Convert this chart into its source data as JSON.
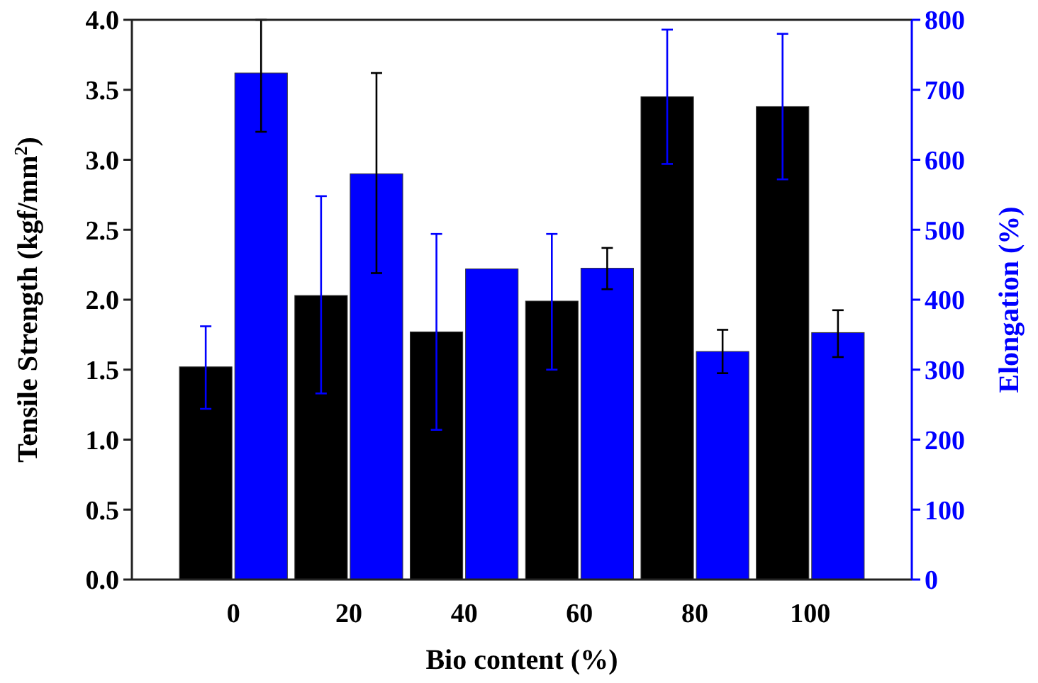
{
  "chart_data": {
    "type": "bar",
    "categories": [
      "0",
      "20",
      "40",
      "60",
      "80",
      "100"
    ],
    "xlabel": "Bio content (%)",
    "ylabel": "Tensile Strength (kgf/mm$^{2}$)",
    "y2label": "Elongation (%)",
    "ylim": [
      0,
      4
    ],
    "yticks": [
      {
        "value": 0,
        "label": "0.0"
      },
      0.5,
      {
        "value": 1,
        "label": "1.0"
      },
      1.5,
      {
        "value": 2,
        "label": "2.0"
      },
      2.5,
      {
        "value": 3,
        "label": "3.0"
      },
      3.5,
      {
        "value": 4,
        "label": "4.0"
      }
    ],
    "y2lim": [
      0,
      800
    ],
    "y2ticks": [
      0,
      100,
      200,
      300,
      400,
      500,
      600,
      700,
      800
    ],
    "grid": false,
    "series": [
      {
        "color": "#000000",
        "values": [
          1.52,
          2.03,
          1.77,
          1.99,
          3.45,
          3.38
        ],
        "errors": [
          [
            1.22,
            1.81
          ],
          [
            1.33,
            2.74
          ],
          [
            1.07,
            2.47
          ],
          [
            1.5,
            2.47
          ],
          [
            2.97,
            3.93
          ],
          [
            2.86,
            3.9
          ]
        ]
      },
      {
        "color": "#0000ff",
        "axis": "y2",
        "values": [
          724,
          580,
          444,
          445,
          326,
          353
        ],
        "errors": [
          [
            640,
            800
          ],
          [
            438,
            724
          ],
          null,
          [
            415,
            474
          ],
          [
            295,
            357
          ],
          [
            318,
            385
          ]
        ]
      }
    ]
  }
}
